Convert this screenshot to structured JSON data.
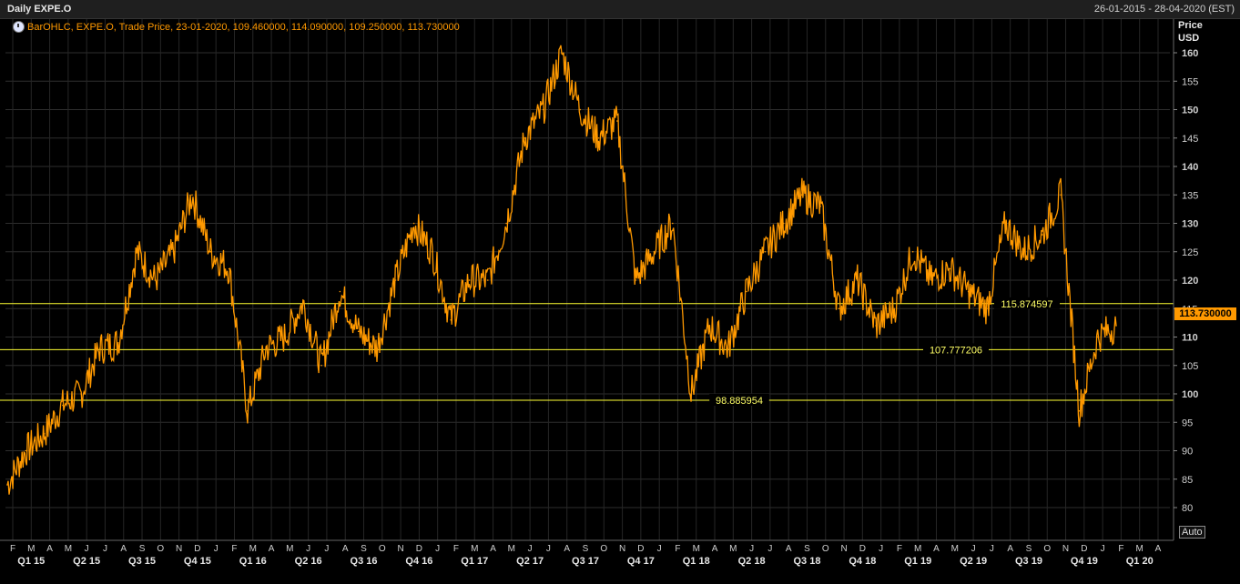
{
  "window": {
    "title": "Daily EXPE.O",
    "date_range": "26-01-2015 - 28-04-2020 (EST)"
  },
  "legend": {
    "text": "BarOHLC, EXPE.O, Trade Price, 23-01-2020, 109.460000, 114.090000, 109.250000, 113.730000",
    "icon": "clock-icon"
  },
  "axis": {
    "title_line1": "Price",
    "title_line2": "USD"
  },
  "last_price": "113.730000",
  "auto_button": "Auto",
  "colors": {
    "series": "#ff9900",
    "hline": "#ffff33",
    "background": "#000000",
    "grid": "#333333"
  },
  "chart_data": {
    "type": "line",
    "series": [
      {
        "name": "EXPE.O",
        "x": [
          "2015-01",
          "2015-02",
          "2015-03",
          "2015-04",
          "2015-05",
          "2015-06",
          "2015-07",
          "2015-08",
          "2015-09",
          "2015-10",
          "2015-11",
          "2015-12",
          "2016-01",
          "2016-02",
          "2016-03",
          "2016-04",
          "2016-05",
          "2016-06",
          "2016-07",
          "2016-08",
          "2016-09",
          "2016-10",
          "2016-11",
          "2016-12",
          "2017-01",
          "2017-02",
          "2017-03",
          "2017-04",
          "2017-05",
          "2017-06",
          "2017-07",
          "2017-08",
          "2017-09",
          "2017-10",
          "2017-11",
          "2017-12",
          "2018-01",
          "2018-02",
          "2018-03",
          "2018-04",
          "2018-05",
          "2018-06",
          "2018-07",
          "2018-08",
          "2018-09",
          "2018-10",
          "2018-11",
          "2018-12",
          "2019-01",
          "2019-02",
          "2019-03",
          "2019-04",
          "2019-05",
          "2019-06",
          "2019-07",
          "2019-08",
          "2019-09",
          "2019-10",
          "2019-11",
          "2019-12",
          "2020-01"
        ],
        "values": [
          84,
          90,
          93,
          98,
          100,
          108,
          109,
          125,
          120,
          125,
          135,
          125,
          122,
          97,
          108,
          110,
          116,
          105,
          118,
          111,
          108,
          120,
          130,
          125,
          113,
          120,
          120,
          130,
          145,
          150,
          160,
          150,
          145,
          148,
          120,
          125,
          130,
          100,
          112,
          108,
          118,
          125,
          130,
          135,
          133,
          115,
          120,
          112,
          115,
          125,
          120,
          122,
          118,
          115,
          130,
          125,
          128,
          135,
          97,
          110,
          112
        ]
      }
    ],
    "hlines": [
      {
        "value": 115.874597,
        "label": "115.874597"
      },
      {
        "value": 107.777206,
        "label": "107.777206"
      },
      {
        "value": 98.885954,
        "label": "98.885954"
      }
    ],
    "yticks": [
      80,
      85,
      90,
      95,
      100,
      105,
      110,
      115,
      120,
      125,
      130,
      135,
      140,
      145,
      150,
      155,
      160
    ],
    "ylim": [
      75,
      162
    ],
    "xmonths": [
      "F",
      "M",
      "A",
      "M",
      "J",
      "J",
      "A",
      "S",
      "O",
      "N",
      "D",
      "J",
      "F",
      "M",
      "A",
      "M",
      "J",
      "J",
      "A",
      "S",
      "O",
      "N",
      "D",
      "J",
      "F",
      "M",
      "A",
      "M",
      "J",
      "J",
      "A",
      "S",
      "O",
      "N",
      "D",
      "J",
      "F",
      "M",
      "A",
      "M",
      "J",
      "J",
      "A",
      "S",
      "O",
      "N",
      "D",
      "J",
      "F",
      "M",
      "A",
      "M",
      "J",
      "J",
      "A",
      "S",
      "O",
      "N",
      "D",
      "J",
      "F",
      "M",
      "A"
    ],
    "quarters": [
      "Q1 15",
      "Q2 15",
      "Q3 15",
      "Q4 15",
      "Q1 16",
      "Q2 16",
      "Q3 16",
      "Q4 16",
      "Q1 17",
      "Q2 17",
      "Q3 17",
      "Q4 17",
      "Q1 18",
      "Q2 18",
      "Q3 18",
      "Q4 18",
      "Q1 19",
      "Q2 19",
      "Q3 19",
      "Q4 19",
      "Q1 20"
    ]
  }
}
